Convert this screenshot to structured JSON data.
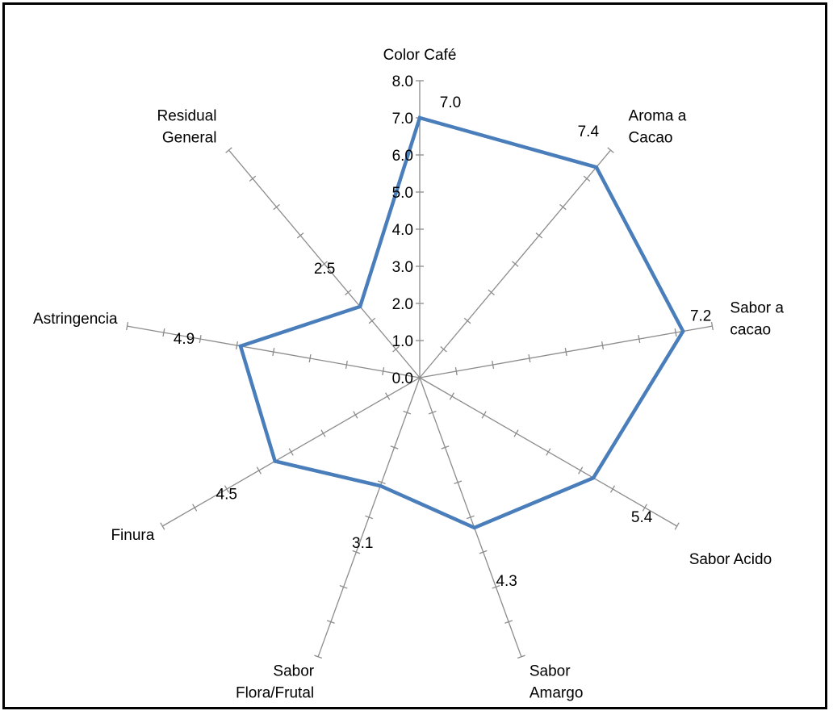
{
  "chart_data": {
    "type": "radar",
    "categories": [
      [
        "Color Café"
      ],
      [
        "Aroma  a",
        "Cacao"
      ],
      [
        "Sabor a",
        "cacao"
      ],
      [
        "Sabor Acido"
      ],
      [
        "Sabor",
        "Amargo"
      ],
      [
        "Sabor",
        "Flora/Frutal"
      ],
      [
        "Finura"
      ],
      [
        "Astringencia"
      ],
      [
        "Residual",
        "General"
      ]
    ],
    "values": [
      7.0,
      7.4,
      7.2,
      5.4,
      4.3,
      3.1,
      4.5,
      4.9,
      2.5
    ],
    "value_labels": [
      "7.0",
      "7.4",
      "7.2",
      "5.4",
      "4.3",
      "3.1",
      "4.5",
      "4.9",
      "2.5"
    ],
    "rlim": [
      0,
      8
    ],
    "tick_labels": [
      "0.0",
      "1.0",
      "2.0",
      "3.0",
      "4.0",
      "5.0",
      "6.0",
      "7.0",
      "8.0"
    ],
    "series_color": "#4a7ebb",
    "axis_color": "#8c8c8c",
    "legend": "none"
  }
}
